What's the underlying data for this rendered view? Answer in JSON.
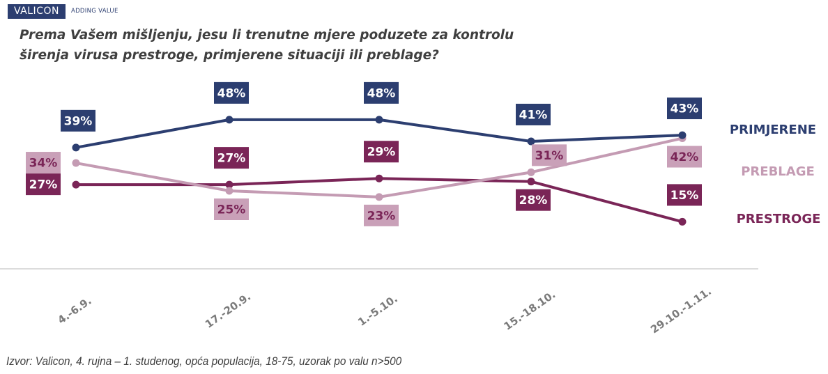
{
  "header": {
    "brand": "VALICON",
    "tagline": "ADDING VALUE"
  },
  "title_lines": [
    "Prema Vašem mišljenju,  jesu li trenutne mjere poduzete za kontrolu",
    "širenja virusa  prestroge, primjerene situaciji ili preblage?"
  ],
  "source": "Izvor: Valicon, 4. rujna – 1. studenog, opća populacija, 18-75, uzorak po valu n>500",
  "chart_data": {
    "type": "line",
    "title": "Prema Vašem mišljenju,  jesu li trenutne mjere poduzete za kontrolu širenja virusa  prestroge, primjerene situaciji ili preblage?",
    "xlabel": "",
    "ylabel": "",
    "categories": [
      "4.-6.9.",
      "17.-20.9.",
      "1.-5.10.",
      "15.-18.10.",
      "29.10.-1.11."
    ],
    "unit": "%",
    "grid": false,
    "legend_position": "right",
    "series": [
      {
        "name": "PRIMJERENE",
        "color": "#2c3e70",
        "label_bg": "#2c3e70",
        "label_fg": "#ffffff",
        "values": [
          39,
          48,
          48,
          41,
          43
        ],
        "labels": [
          "39%",
          "48%",
          "48%",
          "41%",
          "43%"
        ],
        "label_side": [
          "above",
          "above",
          "above",
          "above",
          "above"
        ]
      },
      {
        "name": "PREBLAGE",
        "color": "#c49bb3",
        "label_bg": "#c9a0b8",
        "label_fg": "#7a2557",
        "values": [
          34,
          25,
          23,
          31,
          42
        ],
        "labels": [
          "34%",
          "25%",
          "23%",
          "31%",
          "42%"
        ],
        "label_side": [
          "left",
          "below",
          "below",
          "above-right",
          "below"
        ]
      },
      {
        "name": "PRESTROGE",
        "color": "#7a2557",
        "label_bg": "#7a2557",
        "label_fg": "#ffffff",
        "values": [
          27,
          27,
          29,
          28,
          15
        ],
        "labels": [
          "27%",
          "27%",
          "29%",
          "28%",
          "15%"
        ],
        "label_side": [
          "left",
          "above",
          "above",
          "below",
          "above"
        ]
      }
    ]
  }
}
